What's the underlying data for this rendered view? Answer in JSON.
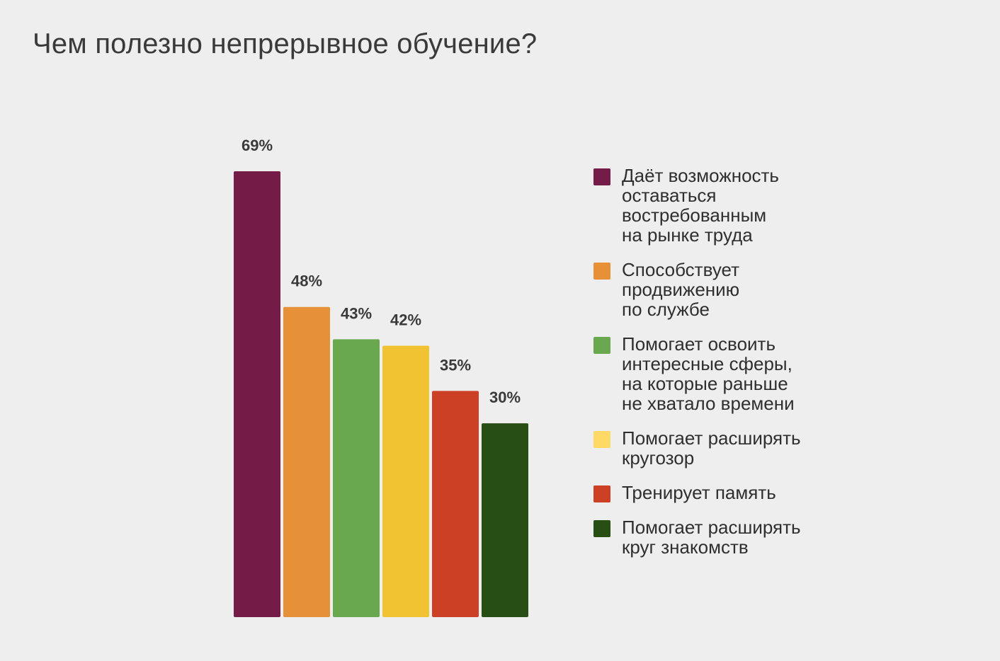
{
  "chart_data": {
    "type": "bar",
    "title": "Чем полезно непрерывное обучение?",
    "categories": [
      "Даёт возможность\nоставаться\nвостребованным\nна рынке труда",
      "Способствует\nпродвижению\nпо службе",
      "Помогает освоить\nинтересные сферы,\nна которые раньше\nне хватало времени",
      "Помогает расширять\nкругозор",
      "Тренирует память",
      "Помогает расширять\nкруг знакомств"
    ],
    "values": [
      69,
      48,
      43,
      42,
      35,
      30
    ],
    "value_labels": [
      "69%",
      "48%",
      "43%",
      "42%",
      "35%",
      "30%"
    ],
    "unit": "%",
    "colors": [
      "#741b47",
      "#e69138",
      "#6aa84f",
      "#f1c232",
      "#cc4125",
      "#274e13"
    ],
    "legend_colors": [
      "#741b47",
      "#e69138",
      "#6aa84f",
      "#ffd966",
      "#cc4125",
      "#274e13"
    ],
    "ylim": [
      0,
      69
    ],
    "legend_position": "right",
    "grid": false
  }
}
